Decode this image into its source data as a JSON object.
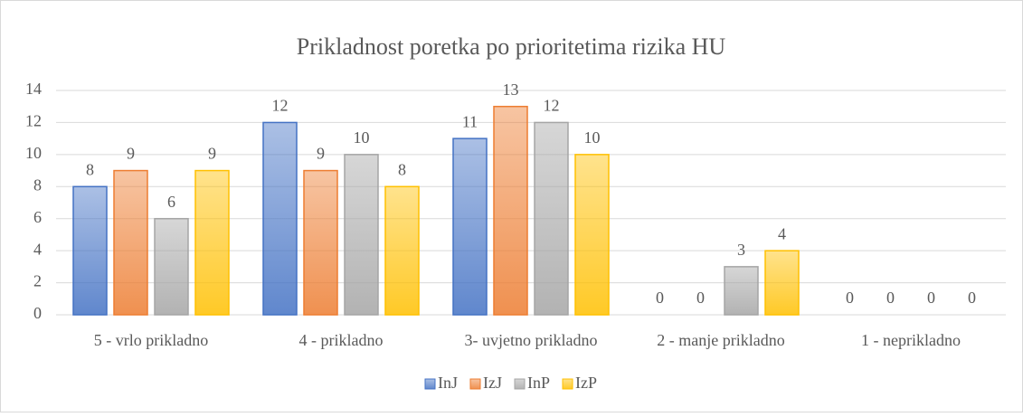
{
  "chart_data": {
    "type": "bar",
    "title": "Prikladnost poretka po prioritetima rizika HU",
    "categories": [
      "5 - vrlo prikladno",
      "4 - prikladno",
      "3- uvjetno prikladno",
      "2 - manje prikladno",
      "1 - neprikladno"
    ],
    "series": [
      {
        "name": "InJ",
        "color": "#4472c4",
        "values": [
          8,
          12,
          11,
          0,
          0
        ]
      },
      {
        "name": "IzJ",
        "color": "#ed7d31",
        "values": [
          9,
          9,
          13,
          0,
          0
        ]
      },
      {
        "name": "InP",
        "color": "#a5a5a5",
        "values": [
          6,
          10,
          12,
          3,
          0
        ]
      },
      {
        "name": "IzP",
        "color": "#ffc000",
        "values": [
          9,
          8,
          10,
          4,
          0
        ]
      }
    ],
    "ylim": [
      0,
      14
    ],
    "yticks": [
      0,
      2,
      4,
      6,
      8,
      10,
      12,
      14
    ],
    "grid": true,
    "legend": "bottom"
  }
}
